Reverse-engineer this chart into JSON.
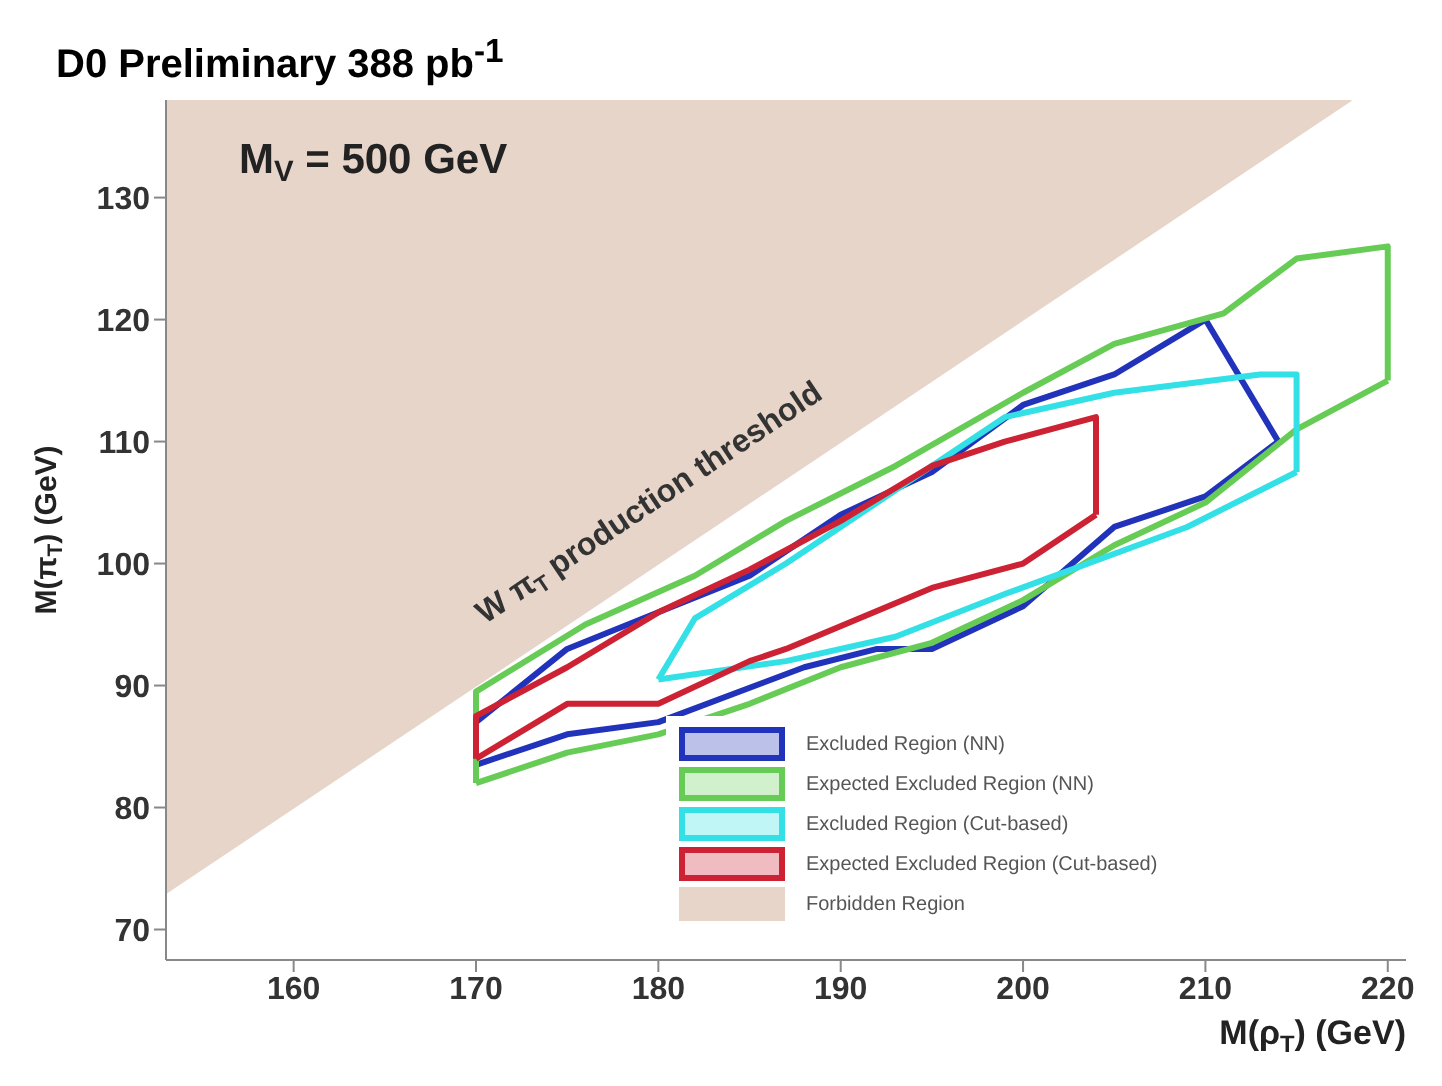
{
  "chart_data": {
    "type": "line",
    "title": "D0 Preliminary 388 pb$^{-1}$",
    "xlabel": "M(ρ$_{T}$) (GeV)",
    "ylabel": "M(π$_{T}$) (GeV)",
    "annotations": [
      "M$_{V}$ = 500 GeV",
      "W π$_{T}$ production threshold"
    ],
    "xlim": [
      153,
      221
    ],
    "xticks": [
      160,
      170,
      180,
      190,
      200,
      210,
      220
    ],
    "ylim": [
      67.5,
      138
    ],
    "yticks": [
      70,
      80,
      90,
      100,
      110,
      120,
      130
    ],
    "grid": false,
    "legend": "bottom right",
    "marker": "none",
    "line_style": "solid",
    "series": [
      {
        "name": "Excluded Region (NN)",
        "color": "#2233bb",
        "x": [
          170,
          175,
          180,
          188,
          192,
          195,
          200,
          205,
          210,
          214
        ],
        "values": [
          83.5,
          86,
          87,
          91.5,
          93,
          93,
          96.5,
          103,
          105.5,
          110
        ]
      },
      {
        "color": "#2233bb",
        "x": [
          170,
          170,
          175,
          180,
          185,
          190,
          195,
          200,
          205,
          210,
          214
        ],
        "values": [
          83.5,
          87,
          93,
          96,
          99,
          104,
          107.5,
          113,
          115.5,
          120,
          110
        ]
      },
      {
        "name": "Expected Excluded Region (NN)",
        "color": "#66cc55",
        "x": [
          170,
          175,
          180,
          185,
          190,
          195,
          200,
          205,
          210,
          215,
          220
        ],
        "values": [
          82,
          84.5,
          86,
          88.5,
          91.5,
          93.5,
          97,
          101.5,
          105,
          111,
          115
        ]
      },
      {
        "color": "#66cc55",
        "x": [
          170,
          170,
          176,
          182,
          187,
          193,
          200,
          205,
          211,
          215,
          220,
          220
        ],
        "values": [
          82,
          89.5,
          95,
          99,
          103.5,
          108,
          114,
          118,
          120.5,
          125,
          126,
          115
        ]
      },
      {
        "name": "Excluded Region (Cut-based)",
        "color": "#33e0e6",
        "x": [
          180,
          187,
          193,
          199,
          209,
          215
        ],
        "values": [
          90.5,
          92,
          94,
          97.5,
          103,
          107.5
        ]
      },
      {
        "color": "#33e0e6",
        "x": [
          180,
          182,
          187,
          193,
          199,
          205,
          213,
          215,
          215
        ],
        "values": [
          90.5,
          95.5,
          100,
          106,
          112,
          114,
          115.5,
          115.5,
          107.5
        ]
      },
      {
        "name": "Expected Excluded Region (Cut-based)",
        "color": "#cc2233",
        "x": [
          170,
          175,
          180,
          185,
          187,
          195,
          200,
          204
        ],
        "values": [
          84,
          88.5,
          88.5,
          92,
          93,
          98,
          100,
          104
        ]
      },
      {
        "color": "#cc2233",
        "x": [
          170,
          170,
          175,
          180,
          185,
          190,
          195,
          199,
          204,
          204
        ],
        "values": [
          84,
          87.5,
          91.5,
          96,
          99.5,
          103.5,
          108,
          110,
          112,
          104
        ]
      },
      {
        "name": "Forbidden Region",
        "type": "area",
        "color": "#e6d5c8",
        "x": [
          153,
          218
        ],
        "values": [
          73,
          138
        ]
      }
    ]
  }
}
